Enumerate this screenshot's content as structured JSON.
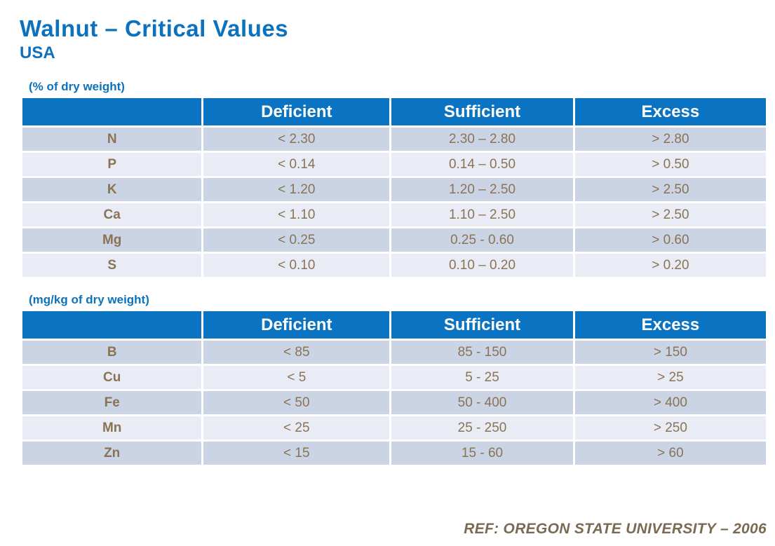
{
  "page": {
    "title": "Walnut – Critical Values",
    "subtitle": "USA",
    "footer": "REF: OREGON STATE UNIVERSITY – 2006"
  },
  "colors": {
    "accent_blue": "#0b74c2",
    "title_blue": "#0d72bd",
    "row_dark": "#cbd4e4",
    "row_light": "#e9ecf5",
    "text_brown": "#8a7355",
    "footer_brown": "#7b6a52",
    "header_text": "#ffffff"
  },
  "tables": [
    {
      "unit_label": "(% of dry weight)",
      "columns": [
        "",
        "Deficient",
        "Sufficient",
        "Excess"
      ],
      "rows": [
        {
          "element": "N",
          "deficient": "< 2.30",
          "sufficient": "2.30 – 2.80",
          "excess": "> 2.80"
        },
        {
          "element": "P",
          "deficient": "< 0.14",
          "sufficient": "0.14 – 0.50",
          "excess": "> 0.50"
        },
        {
          "element": "K",
          "deficient": "< 1.20",
          "sufficient": "1.20 – 2.50",
          "excess": "> 2.50"
        },
        {
          "element": "Ca",
          "deficient": "< 1.10",
          "sufficient": "1.10 – 2.50",
          "excess": "> 2.50"
        },
        {
          "element": "Mg",
          "deficient": "< 0.25",
          "sufficient": "0.25 - 0.60",
          "excess": "> 0.60"
        },
        {
          "element": "S",
          "deficient": "< 0.10",
          "sufficient": "0.10 – 0.20",
          "excess": "> 0.20"
        }
      ]
    },
    {
      "unit_label": "(mg/kg of dry weight)",
      "columns": [
        "",
        "Deficient",
        "Sufficient",
        "Excess"
      ],
      "rows": [
        {
          "element": "B",
          "deficient": "< 85",
          "sufficient": "85 - 150",
          "excess": "> 150"
        },
        {
          "element": "Cu",
          "deficient": "< 5",
          "sufficient": "5 - 25",
          "excess": "> 25"
        },
        {
          "element": "Fe",
          "deficient": "< 50",
          "sufficient": "50 - 400",
          "excess": "> 400"
        },
        {
          "element": "Mn",
          "deficient": "< 25",
          "sufficient": "25 - 250",
          "excess": "> 250"
        },
        {
          "element": "Zn",
          "deficient": "< 15",
          "sufficient": "15 - 60",
          "excess": "> 60"
        }
      ]
    }
  ]
}
